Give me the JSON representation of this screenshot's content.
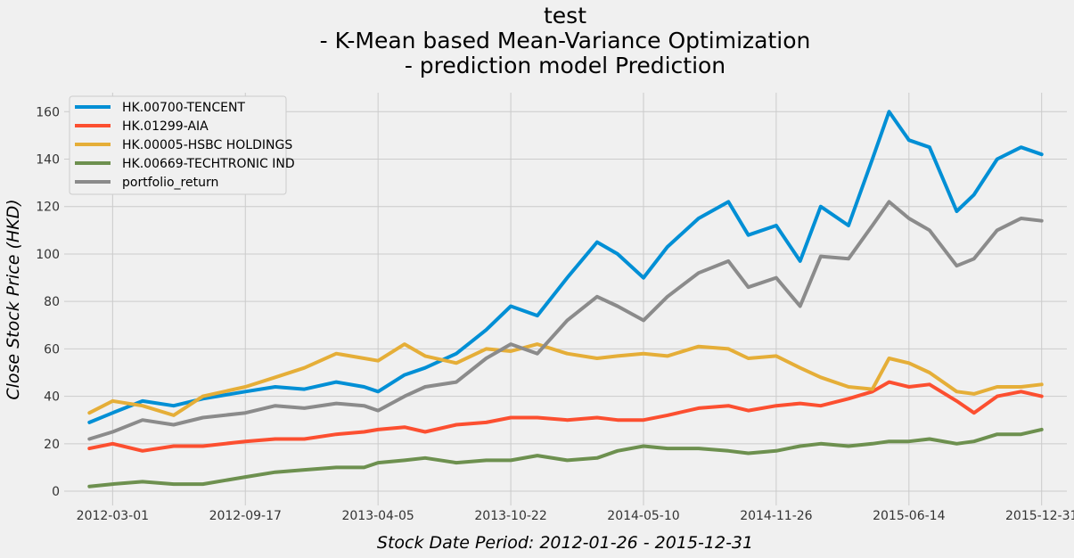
{
  "chart_data": {
    "type": "line",
    "title_lines": [
      "test",
      "- K-Mean based Mean-Variance Optimization",
      "- prediction model Prediction"
    ],
    "xlabel": "Stock Date Period: 2012-01-26 - 2015-12-31",
    "ylabel": "Close Stock Price (HKD)",
    "x_ticks": [
      "2012-03-01",
      "2012-09-17",
      "2013-04-05",
      "2013-10-22",
      "2014-05-10",
      "2014-11-26",
      "2015-06-14",
      "2015-12-31"
    ],
    "xlim": [
      "2011-12-19",
      "2016-02-07"
    ],
    "y_ticks": [
      0,
      20,
      40,
      60,
      80,
      100,
      120,
      140,
      160
    ],
    "ylim": [
      -6,
      168
    ],
    "grid": true,
    "legend_position": "top-left",
    "series": [
      {
        "name": "HK.00700-TENCENT",
        "color": "#008fd5",
        "x": [
          "2012-01-26",
          "2012-03-01",
          "2012-04-15",
          "2012-06-01",
          "2012-07-15",
          "2012-09-17",
          "2012-11-01",
          "2012-12-15",
          "2013-02-01",
          "2013-03-15",
          "2013-04-05",
          "2013-05-15",
          "2013-06-15",
          "2013-08-01",
          "2013-09-15",
          "2013-10-22",
          "2013-12-01",
          "2014-01-15",
          "2014-03-01",
          "2014-04-01",
          "2014-05-10",
          "2014-06-15",
          "2014-08-01",
          "2014-09-15",
          "2014-10-15",
          "2014-11-26",
          "2015-01-01",
          "2015-02-01",
          "2015-03-15",
          "2015-04-20",
          "2015-05-15",
          "2015-06-14",
          "2015-07-15",
          "2015-08-25",
          "2015-09-20",
          "2015-10-25",
          "2015-11-30",
          "2015-12-31"
        ],
        "values": [
          29,
          33,
          38,
          36,
          39,
          42,
          44,
          43,
          46,
          44,
          42,
          49,
          52,
          58,
          68,
          78,
          74,
          90,
          105,
          100,
          90,
          103,
          115,
          122,
          108,
          112,
          97,
          120,
          112,
          140,
          160,
          148,
          145,
          118,
          125,
          140,
          145,
          142
        ]
      },
      {
        "name": "HK.01299-AIA",
        "color": "#fc4f30",
        "x": [
          "2012-01-26",
          "2012-03-01",
          "2012-04-15",
          "2012-06-01",
          "2012-07-15",
          "2012-09-17",
          "2012-11-01",
          "2012-12-15",
          "2013-02-01",
          "2013-03-15",
          "2013-04-05",
          "2013-05-15",
          "2013-06-15",
          "2013-08-01",
          "2013-09-15",
          "2013-10-22",
          "2013-12-01",
          "2014-01-15",
          "2014-03-01",
          "2014-04-01",
          "2014-05-10",
          "2014-06-15",
          "2014-08-01",
          "2014-09-15",
          "2014-10-15",
          "2014-11-26",
          "2015-01-01",
          "2015-02-01",
          "2015-03-15",
          "2015-04-20",
          "2015-05-15",
          "2015-06-14",
          "2015-07-15",
          "2015-08-25",
          "2015-09-20",
          "2015-10-25",
          "2015-11-30",
          "2015-12-31"
        ],
        "values": [
          18,
          20,
          17,
          19,
          19,
          21,
          22,
          22,
          24,
          25,
          26,
          27,
          25,
          28,
          29,
          31,
          31,
          30,
          31,
          30,
          30,
          32,
          35,
          36,
          34,
          36,
          37,
          36,
          39,
          42,
          46,
          44,
          45,
          38,
          33,
          40,
          42,
          40
        ]
      },
      {
        "name": "HK.00005-HSBC HOLDINGS",
        "color": "#e5ae38",
        "x": [
          "2012-01-26",
          "2012-03-01",
          "2012-04-15",
          "2012-06-01",
          "2012-07-15",
          "2012-09-17",
          "2012-11-01",
          "2012-12-15",
          "2013-02-01",
          "2013-03-15",
          "2013-04-05",
          "2013-05-15",
          "2013-06-15",
          "2013-08-01",
          "2013-09-15",
          "2013-10-22",
          "2013-12-01",
          "2014-01-15",
          "2014-03-01",
          "2014-04-01",
          "2014-05-10",
          "2014-06-15",
          "2014-08-01",
          "2014-09-15",
          "2014-10-15",
          "2014-11-26",
          "2015-01-01",
          "2015-02-01",
          "2015-03-15",
          "2015-04-20",
          "2015-05-15",
          "2015-06-14",
          "2015-07-15",
          "2015-08-25",
          "2015-09-20",
          "2015-10-25",
          "2015-11-30",
          "2015-12-31"
        ],
        "values": [
          33,
          38,
          36,
          32,
          40,
          44,
          48,
          52,
          58,
          56,
          55,
          62,
          57,
          54,
          60,
          59,
          62,
          58,
          56,
          57,
          58,
          57,
          61,
          60,
          56,
          57,
          52,
          48,
          44,
          43,
          56,
          54,
          50,
          42,
          41,
          44,
          44,
          45
        ]
      },
      {
        "name": "HK.00669-TECHTRONIC IND",
        "color": "#6d904f",
        "x": [
          "2012-01-26",
          "2012-03-01",
          "2012-04-15",
          "2012-06-01",
          "2012-07-15",
          "2012-09-17",
          "2012-11-01",
          "2012-12-15",
          "2013-02-01",
          "2013-03-15",
          "2013-04-05",
          "2013-05-15",
          "2013-06-15",
          "2013-08-01",
          "2013-09-15",
          "2013-10-22",
          "2013-12-01",
          "2014-01-15",
          "2014-03-01",
          "2014-04-01",
          "2014-05-10",
          "2014-06-15",
          "2014-08-01",
          "2014-09-15",
          "2014-10-15",
          "2014-11-26",
          "2015-01-01",
          "2015-02-01",
          "2015-03-15",
          "2015-04-20",
          "2015-05-15",
          "2015-06-14",
          "2015-07-15",
          "2015-08-25",
          "2015-09-20",
          "2015-10-25",
          "2015-11-30",
          "2015-12-31"
        ],
        "values": [
          2,
          3,
          4,
          3,
          3,
          6,
          8,
          9,
          10,
          10,
          12,
          13,
          14,
          12,
          13,
          13,
          15,
          13,
          14,
          17,
          19,
          18,
          18,
          17,
          16,
          17,
          19,
          20,
          19,
          20,
          21,
          21,
          22,
          20,
          21,
          24,
          24,
          26
        ]
      },
      {
        "name": "portfolio_return",
        "color": "#8b8b8b",
        "x": [
          "2012-01-26",
          "2012-03-01",
          "2012-04-15",
          "2012-06-01",
          "2012-07-15",
          "2012-09-17",
          "2012-11-01",
          "2012-12-15",
          "2013-02-01",
          "2013-03-15",
          "2013-04-05",
          "2013-05-15",
          "2013-06-15",
          "2013-08-01",
          "2013-09-15",
          "2013-10-22",
          "2013-12-01",
          "2014-01-15",
          "2014-03-01",
          "2014-04-01",
          "2014-05-10",
          "2014-06-15",
          "2014-08-01",
          "2014-09-15",
          "2014-10-15",
          "2014-11-26",
          "2015-01-01",
          "2015-02-01",
          "2015-03-15",
          "2015-04-20",
          "2015-05-15",
          "2015-06-14",
          "2015-07-15",
          "2015-08-25",
          "2015-09-20",
          "2015-10-25",
          "2015-11-30",
          "2015-12-31"
        ],
        "values": [
          22,
          25,
          30,
          28,
          31,
          33,
          36,
          35,
          37,
          36,
          34,
          40,
          44,
          46,
          56,
          62,
          58,
          72,
          82,
          78,
          72,
          82,
          92,
          97,
          86,
          90,
          78,
          99,
          98,
          112,
          122,
          115,
          110,
          95,
          98,
          110,
          115,
          114
        ]
      }
    ]
  }
}
